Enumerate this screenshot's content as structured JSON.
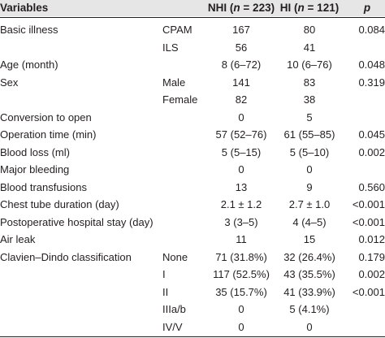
{
  "header": {
    "variables": "Variables",
    "nhi_prefix": "NHI (",
    "nhi_n": "n",
    "nhi_suffix": " = 223)",
    "hi_prefix": "HI (",
    "hi_n": "n",
    "hi_suffix": " = 121)",
    "p": "p"
  },
  "rows": [
    {
      "variable": "Basic illness",
      "sub": "CPAM",
      "nhi": "167",
      "hi": "80",
      "p": "0.084"
    },
    {
      "variable": "",
      "sub": "ILS",
      "nhi": "56",
      "hi": "41",
      "p": ""
    },
    {
      "variable": "Age (month)",
      "sub": "",
      "nhi": "8 (6–72)",
      "hi": "10 (6–76)",
      "p": "0.048"
    },
    {
      "variable": "Sex",
      "sub": "Male",
      "nhi": "141",
      "hi": "83",
      "p": "0.319"
    },
    {
      "variable": "",
      "sub": "Female",
      "nhi": "82",
      "hi": "38",
      "p": ""
    },
    {
      "variable": "Conversion to open",
      "sub": "",
      "nhi": "0",
      "hi": "5",
      "p": ""
    },
    {
      "variable": "Operation time (min)",
      "sub": "",
      "nhi": "57 (52–76)",
      "hi": "61 (55–85)",
      "p": "0.045"
    },
    {
      "variable": "Blood loss (ml)",
      "sub": "",
      "nhi": "5 (5–15)",
      "hi": "5 (5–10)",
      "p": "0.002"
    },
    {
      "variable": "Major bleeding",
      "sub": "",
      "nhi": "0",
      "hi": "0",
      "p": ""
    },
    {
      "variable": "Blood transfusions",
      "sub": "",
      "nhi": "13",
      "hi": "9",
      "p": "0.560"
    },
    {
      "variable": "Chest tube duration (day)",
      "sub": "",
      "nhi": "2.1 ± 1.2",
      "hi": "2.7 ± 1.0",
      "p": "<0.001"
    },
    {
      "variable": "Postoperative hospital stay (day)",
      "sub": "",
      "nhi": "3 (3–5)",
      "hi": "4 (4–5)",
      "p": "<0.001"
    },
    {
      "variable": "Air leak",
      "sub": "",
      "nhi": "11",
      "hi": "15",
      "p": "0.012"
    },
    {
      "variable": "Clavien–Dindo classification",
      "sub": "None",
      "nhi": "71 (31.8%)",
      "hi": "32 (26.4%)",
      "p": "0.179"
    },
    {
      "variable": "",
      "sub": "I",
      "nhi": "117 (52.5%)",
      "hi": "43 (35.5%)",
      "p": "0.002"
    },
    {
      "variable": "",
      "sub": "II",
      "nhi": "35 (15.7%)",
      "hi": "41 (33.9%)",
      "p": "<0.001"
    },
    {
      "variable": "",
      "sub": "IIIa/b",
      "nhi": "0",
      "hi": "5 (4.1%)",
      "p": ""
    },
    {
      "variable": "",
      "sub": "IV/V",
      "nhi": "0",
      "hi": "0",
      "p": ""
    }
  ]
}
